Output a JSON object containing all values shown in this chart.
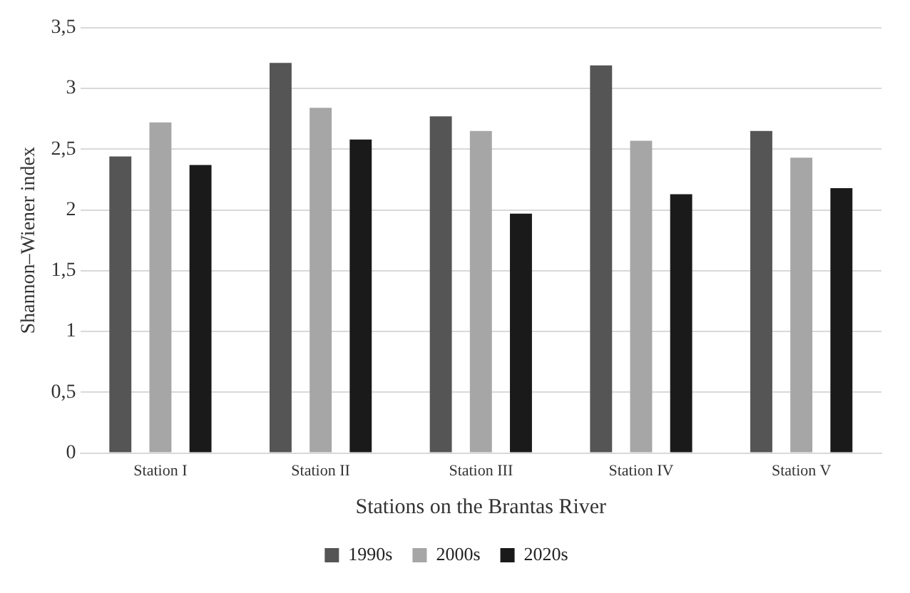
{
  "chart_data": {
    "type": "bar",
    "xlabel": "Stations on the Brantas River",
    "ylabel": "Shannon–Wiener index",
    "categories": [
      "Station I",
      "Station II",
      "Station III",
      "Station IV",
      "Station V"
    ],
    "series": [
      {
        "name": "1990s",
        "color": "#555555",
        "values": [
          2.44,
          3.21,
          2.77,
          3.19,
          2.65
        ]
      },
      {
        "name": "2000s",
        "color": "#a6a6a6",
        "values": [
          2.72,
          2.84,
          2.65,
          2.57,
          2.43
        ]
      },
      {
        "name": "2020s",
        "color": "#1a1a1a",
        "values": [
          2.37,
          2.58,
          1.97,
          2.13,
          2.18
        ]
      }
    ],
    "ylim": [
      0,
      3.5
    ],
    "yticks": [
      0,
      {
        "value": 0.5,
        "label": "0,5"
      },
      1,
      {
        "value": 1.5,
        "label": "1,5"
      },
      2,
      {
        "value": 2.5,
        "label": "2,5"
      },
      3,
      {
        "value": 3.5,
        "label": "3,5"
      }
    ],
    "grid": "y",
    "legend": "bottom"
  }
}
